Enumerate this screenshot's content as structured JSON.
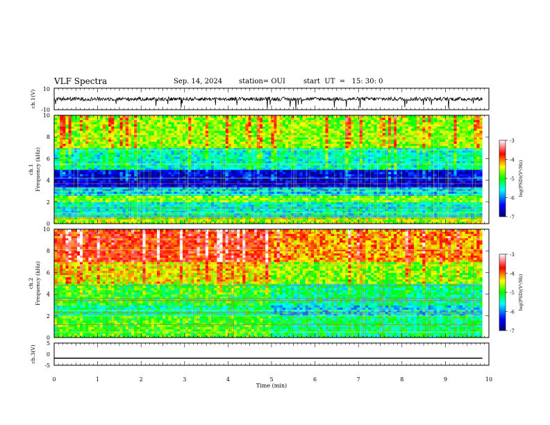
{
  "header": {
    "title": "VLF Spectra",
    "date": "Sep. 14, 2024",
    "station": "station= OUI",
    "start": "start  UT  =   15: 30: 0"
  },
  "chart_data": [
    {
      "type": "line",
      "panel": "ch1-waveform",
      "ylabel": "ch.1(V)",
      "ylim": [
        -10,
        10
      ],
      "yticks": [
        "10",
        "-10"
      ],
      "series": [
        {
          "name": "",
          "description_level": "noisy signal about 0 V, amplitude approx ±2 V with occasional spikes to -10 V"
        }
      ],
      "approx_values": {
        "x_min": [
          0,
          9.85
        ],
        "baseline_V": 0,
        "noise_amplitude_V": 2
      }
    },
    {
      "type": "heatmap",
      "panel": "ch1-spectrogram",
      "ylabel": "ch.1\nFrequency (kHz)",
      "ylabel_line1": "ch.1",
      "ylabel_line2": "Frequency (kHz)",
      "ylim": [
        0,
        10
      ],
      "yticks": [
        "0",
        "2",
        "4",
        "6",
        "8",
        "10"
      ],
      "xlim_data": [
        0,
        9.85
      ],
      "colorbar": {
        "label": "log(PSD)(V²/Hz)",
        "range": [
          -7,
          -3
        ],
        "ticks": [
          "-3",
          "-4",
          "-5",
          "-6",
          "-7"
        ]
      },
      "bands_kHz_level": [
        {
          "f": [
            0,
            0.7
          ],
          "level": -4.6
        },
        {
          "f": [
            0.7,
            2.0
          ],
          "level": -5.5
        },
        {
          "f": [
            2.0,
            2.6
          ],
          "level": -4.8
        },
        {
          "f": [
            2.6,
            3.4
          ],
          "level": -5.7
        },
        {
          "f": [
            3.4,
            5.0
          ],
          "level": -6.6
        },
        {
          "f": [
            5.0,
            7.0
          ],
          "level": -5.5
        },
        {
          "f": [
            7.0,
            10.0
          ],
          "level": -4.7
        }
      ]
    },
    {
      "type": "heatmap",
      "panel": "ch2-spectrogram",
      "ylabel_line1": "ch.2",
      "ylabel_line2": "Frequency (kHz)",
      "ylim": [
        0,
        10
      ],
      "yticks": [
        "0",
        "2",
        "4",
        "6",
        "8",
        "10"
      ],
      "xlim_data": [
        0,
        9.85
      ],
      "colorbar": {
        "label": "log(PSD)(V²/Hz)",
        "range": [
          -7,
          -3
        ],
        "ticks": [
          "-3",
          "-4",
          "-5",
          "-6",
          "-7"
        ]
      },
      "bands_kHz_level": [
        {
          "f": [
            0,
            2.0
          ],
          "level": -4.9
        },
        {
          "f": [
            2.0,
            3.0
          ],
          "level": -5.3
        },
        {
          "f": [
            3.0,
            5.0
          ],
          "level": -5.0
        },
        {
          "f": [
            5.0,
            7.0
          ],
          "level": -4.4
        },
        {
          "f": [
            7.0,
            10.0
          ],
          "level": -3.8
        }
      ]
    },
    {
      "type": "line",
      "panel": "ch3-waveform",
      "ylabel": "ch.3(V)",
      "ylim": [
        -5,
        5
      ],
      "yticks": [
        "5",
        "0",
        "-5"
      ],
      "series": [
        {
          "name": "",
          "x": [
            0,
            9.85
          ],
          "y": [
            -1.8,
            -1.8
          ]
        }
      ]
    }
  ],
  "xaxis": {
    "label": "Time  (min)",
    "ticks": [
      "0",
      "1",
      "2",
      "3",
      "4",
      "5",
      "6",
      "7",
      "8",
      "9",
      "10"
    ],
    "range": [
      0,
      10
    ]
  }
}
